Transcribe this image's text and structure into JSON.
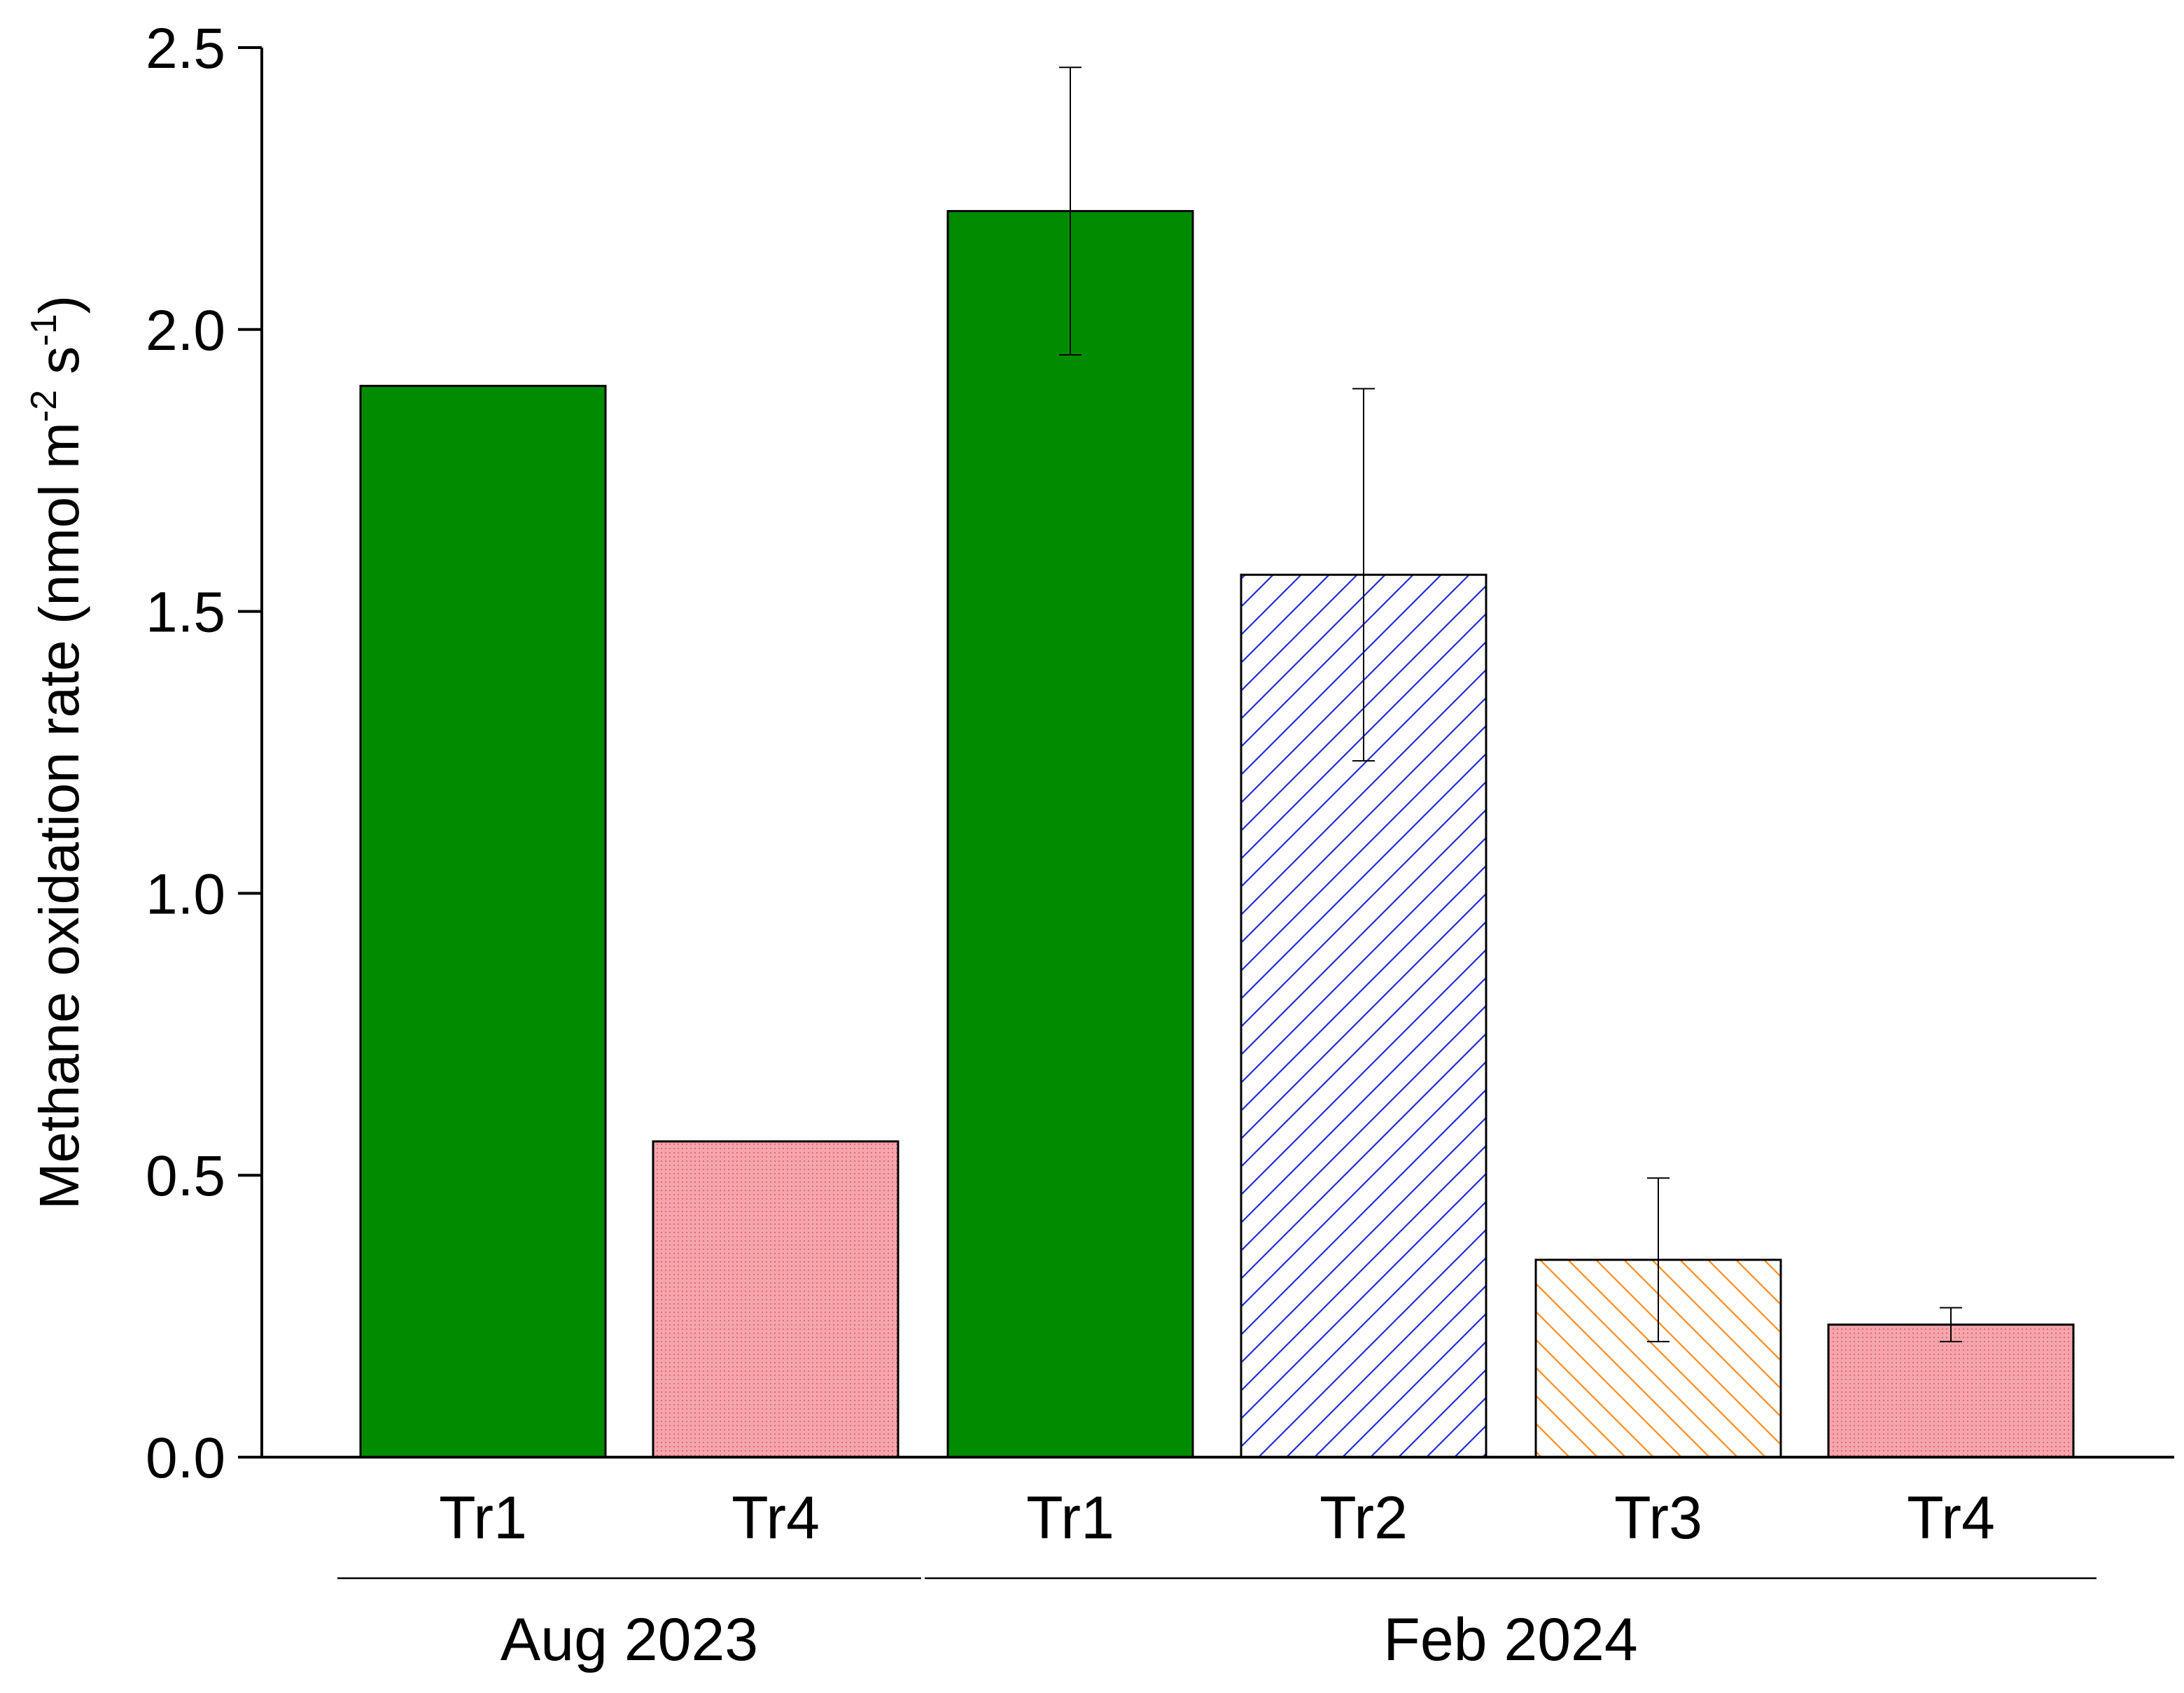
{
  "chart_data": {
    "type": "bar",
    "title": "",
    "ylabel": {
      "main": "Methane oxidation rate (nmol m",
      "sup1": "-2",
      "mid": " s",
      "sup2": "-1",
      "end": ")"
    },
    "ylim": [
      0,
      2.5
    ],
    "yticks": [
      "0.0",
      "0.5",
      "1.0",
      "1.5",
      "2.0",
      "2.5"
    ],
    "categories": [
      "Tr1",
      "Tr4",
      "Tr1",
      "Tr2",
      "Tr3",
      "Tr4"
    ],
    "groups": [
      {
        "label": "Aug 2023",
        "from": 0,
        "to": 1
      },
      {
        "label": "Feb 2024",
        "from": 2,
        "to": 5
      }
    ],
    "bars": [
      {
        "label": "Tr1",
        "value": 1.9,
        "error": null,
        "style": "solid-green"
      },
      {
        "label": "Tr4",
        "value": 0.56,
        "error": null,
        "style": "dotted-pink"
      },
      {
        "label": "Tr1",
        "value": 2.21,
        "error": 0.255,
        "style": "solid-green"
      },
      {
        "label": "Tr2",
        "value": 1.565,
        "error": 0.33,
        "style": "hatch-blue"
      },
      {
        "label": "Tr3",
        "value": 0.35,
        "error": 0.145,
        "style": "hatch-orange"
      },
      {
        "label": "Tr4",
        "value": 0.235,
        "error": 0.03,
        "style": "dotted-pink"
      }
    ],
    "colors": {
      "green": "#008c00",
      "pink": "#f4a6ac",
      "pink_dot": "#e8636e",
      "blue": "#1f2bd6",
      "orange": "#ff8c1a"
    },
    "grid": false,
    "legend": "none"
  }
}
